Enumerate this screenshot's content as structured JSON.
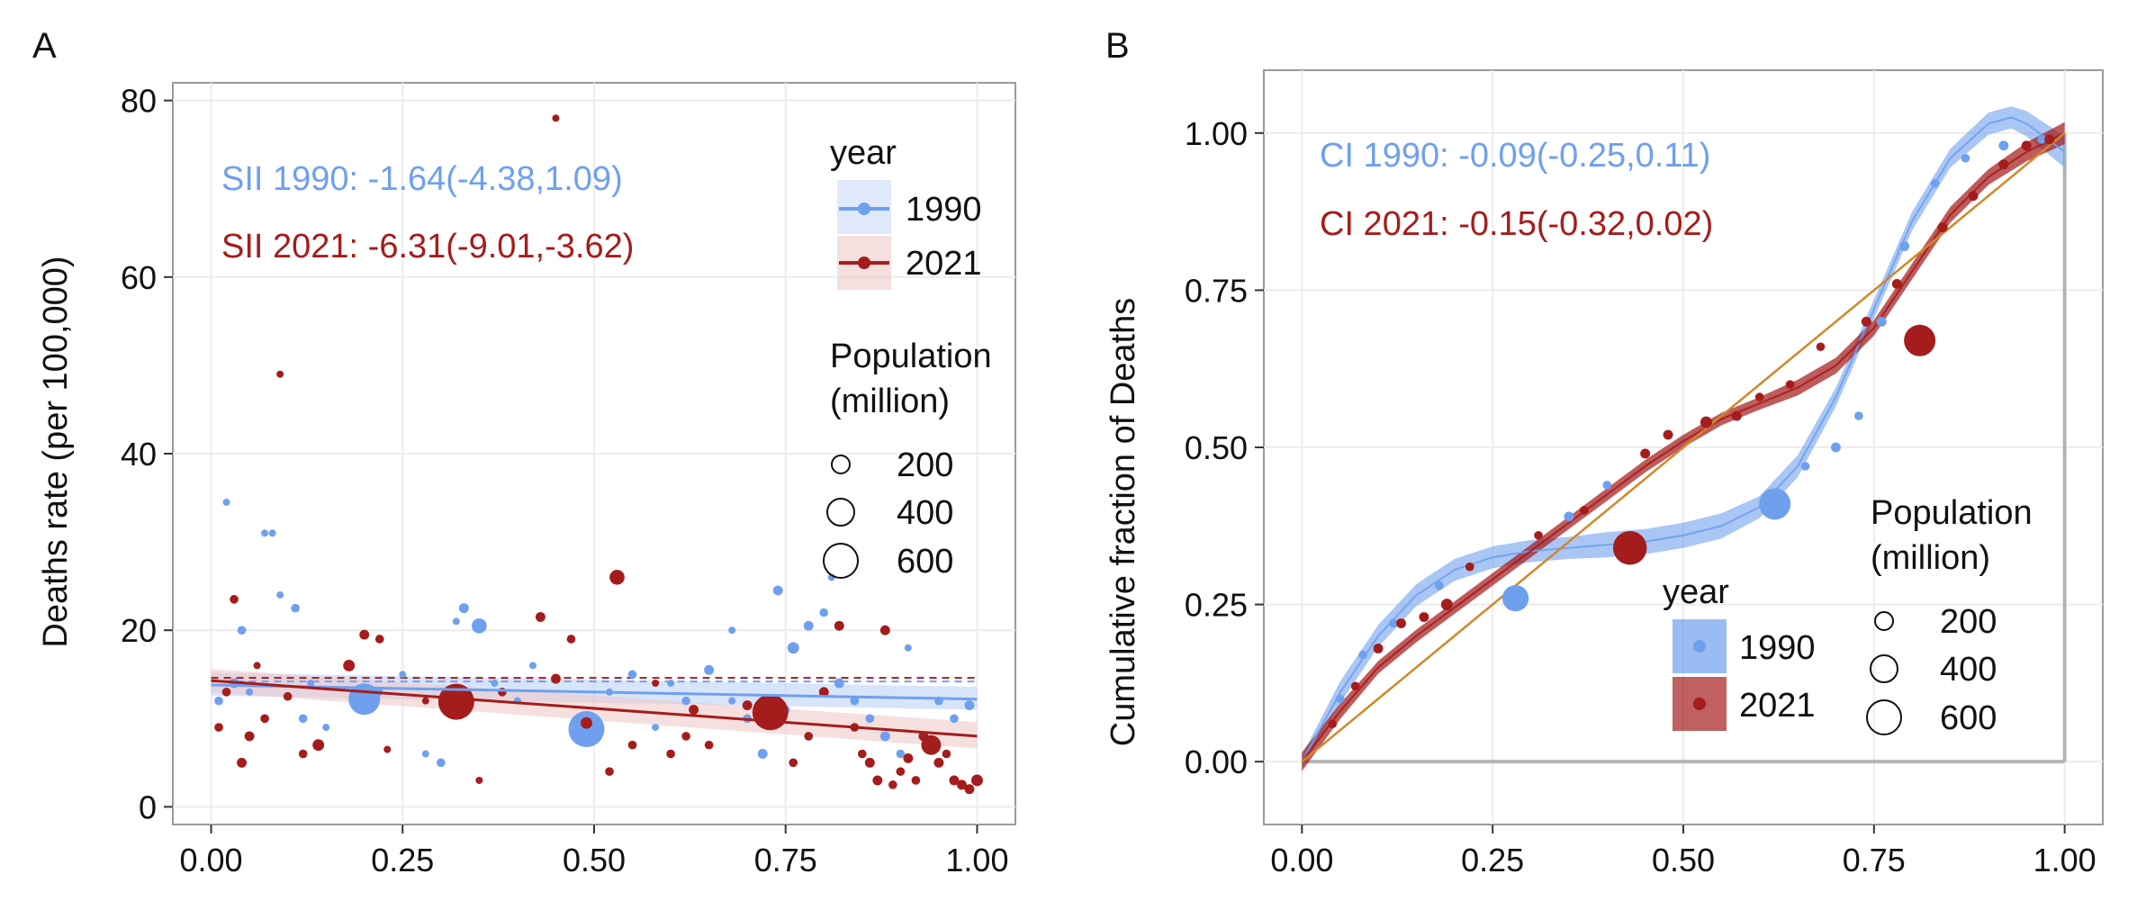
{
  "colors": {
    "c1990": "#6fa0ee",
    "c1990_band": "#a9c4f5",
    "c2021": "#a51c1c",
    "c2021_band": "#efc9c9",
    "diag": "#d4862a",
    "grid": "#ececec",
    "frame": "#9a9a9a",
    "text": "#111111"
  },
  "chart_data": [
    {
      "panel": "A",
      "type": "scatter",
      "ylabel": "Deaths rate (per 100,000)",
      "xlim": [
        -0.05,
        1.05
      ],
      "ylim": [
        -2,
        82
      ],
      "xticks": [
        0,
        0.25,
        0.5,
        0.75,
        1
      ],
      "xtick_labels": [
        "0.00",
        "0.25",
        "0.50",
        "0.75",
        "1.00"
      ],
      "yticks": [
        0,
        20,
        40,
        60,
        80
      ],
      "ytick_labels": [
        "0",
        "20",
        "40",
        "60",
        "80"
      ],
      "annotations": [
        "SII 1990: -1.64(-4.38,1.09)",
        "SII 2021: -6.31(-9.01,-3.62)"
      ],
      "legend_year_title": "year",
      "legend_size_title": [
        "Population",
        "(million)"
      ],
      "series": [
        {
          "name": "1990",
          "fit": [
            [
              0,
              13.8
            ],
            [
              1,
              12.2
            ]
          ],
          "band": [
            [
              0,
              12.6,
              15.2
            ],
            [
              1,
              11.0,
              13.6
            ]
          ],
          "mean": 14.2
        },
        {
          "name": "2021",
          "fit": [
            [
              0,
              14.3
            ],
            [
              1,
              8.0
            ]
          ],
          "band": [
            [
              0,
              13.0,
              15.6
            ],
            [
              1,
              6.6,
              9.6
            ]
          ],
          "mean": 14.6
        }
      ],
      "points_1990": [
        [
          0.01,
          12,
          2
        ],
        [
          0.02,
          34.5,
          1
        ],
        [
          0.03,
          14,
          3
        ],
        [
          0.04,
          20,
          2
        ],
        [
          0.05,
          13,
          1
        ],
        [
          0.07,
          31,
          1
        ],
        [
          0.08,
          31,
          1
        ],
        [
          0.09,
          24,
          1
        ],
        [
          0.11,
          22.5,
          2
        ],
        [
          0.12,
          10,
          2
        ],
        [
          0.13,
          14,
          1
        ],
        [
          0.2,
          12.2,
          60
        ],
        [
          0.22,
          13,
          1
        ],
        [
          0.28,
          6,
          1
        ],
        [
          0.3,
          5,
          2
        ],
        [
          0.32,
          21,
          1
        ],
        [
          0.33,
          22.5,
          3
        ],
        [
          0.35,
          20.5,
          10
        ],
        [
          0.37,
          14,
          1
        ],
        [
          0.4,
          12,
          1
        ],
        [
          0.49,
          8.8,
          90
        ],
        [
          0.52,
          13,
          1
        ],
        [
          0.55,
          15,
          2
        ],
        [
          0.6,
          14,
          1
        ],
        [
          0.62,
          12,
          2
        ],
        [
          0.65,
          15.5,
          3
        ],
        [
          0.68,
          12,
          1
        ],
        [
          0.7,
          10,
          2
        ],
        [
          0.72,
          6,
          3
        ],
        [
          0.74,
          24.5,
          3
        ],
        [
          0.75,
          11,
          2
        ],
        [
          0.76,
          18,
          5
        ],
        [
          0.78,
          20.5,
          3
        ],
        [
          0.8,
          22,
          2
        ],
        [
          0.81,
          26,
          1
        ],
        [
          0.82,
          14,
          3
        ],
        [
          0.84,
          12,
          2
        ],
        [
          0.86,
          10,
          2
        ],
        [
          0.88,
          8,
          3
        ],
        [
          0.9,
          6,
          2
        ],
        [
          0.91,
          18,
          1
        ],
        [
          0.93,
          8,
          2
        ],
        [
          0.95,
          12,
          2
        ],
        [
          0.97,
          10,
          2
        ],
        [
          0.99,
          11.5,
          3
        ],
        [
          0.25,
          15,
          1
        ],
        [
          0.15,
          9,
          1
        ],
        [
          0.42,
          16,
          1
        ],
        [
          0.58,
          9,
          1
        ],
        [
          0.68,
          20,
          1
        ]
      ],
      "points_2021": [
        [
          0.01,
          9,
          2
        ],
        [
          0.02,
          13,
          2
        ],
        [
          0.03,
          23.5,
          2
        ],
        [
          0.04,
          5,
          3
        ],
        [
          0.05,
          8,
          3
        ],
        [
          0.06,
          16,
          1
        ],
        [
          0.09,
          49,
          1
        ],
        [
          0.1,
          12.5,
          2
        ],
        [
          0.12,
          6,
          2
        ],
        [
          0.14,
          7,
          5
        ],
        [
          0.18,
          16,
          5
        ],
        [
          0.2,
          19.5,
          3
        ],
        [
          0.22,
          19,
          2
        ],
        [
          0.23,
          6.5,
          1
        ],
        [
          0.28,
          12,
          1
        ],
        [
          0.32,
          11.9,
          90
        ],
        [
          0.38,
          13,
          2
        ],
        [
          0.45,
          14.5,
          3
        ],
        [
          0.45,
          78,
          1
        ],
        [
          0.47,
          19,
          2
        ],
        [
          0.49,
          9.5,
          5
        ],
        [
          0.52,
          4,
          2
        ],
        [
          0.53,
          26,
          10
        ],
        [
          0.55,
          7,
          2
        ],
        [
          0.58,
          14,
          1
        ],
        [
          0.6,
          6,
          2
        ],
        [
          0.63,
          11,
          3
        ],
        [
          0.65,
          7,
          2
        ],
        [
          0.7,
          11.5,
          3
        ],
        [
          0.73,
          10.7,
          80
        ],
        [
          0.76,
          5,
          2
        ],
        [
          0.78,
          8,
          2
        ],
        [
          0.8,
          13,
          3
        ],
        [
          0.82,
          20.5,
          3
        ],
        [
          0.84,
          9,
          2
        ],
        [
          0.85,
          6,
          2
        ],
        [
          0.86,
          5,
          3
        ],
        [
          0.87,
          3,
          3
        ],
        [
          0.88,
          20,
          3
        ],
        [
          0.89,
          2.5,
          2
        ],
        [
          0.9,
          4,
          2
        ],
        [
          0.91,
          5.5,
          3
        ],
        [
          0.92,
          3,
          2
        ],
        [
          0.93,
          8,
          3
        ],
        [
          0.94,
          7,
          20
        ],
        [
          0.95,
          5,
          3
        ],
        [
          0.96,
          6,
          2
        ],
        [
          0.97,
          3,
          3
        ],
        [
          0.98,
          2.5,
          3
        ],
        [
          0.99,
          2,
          3
        ],
        [
          1.0,
          3,
          5
        ],
        [
          0.43,
          21.5,
          3
        ],
        [
          0.62,
          8,
          2
        ],
        [
          0.35,
          3,
          1
        ],
        [
          0.07,
          10,
          2
        ]
      ]
    },
    {
      "panel": "B",
      "type": "line",
      "ylabel": "Cumulative fraction of Deaths",
      "xlim": [
        -0.05,
        1.05
      ],
      "ylim": [
        -0.1,
        1.1
      ],
      "xticks": [
        0,
        0.25,
        0.5,
        0.75,
        1
      ],
      "xtick_labels": [
        "0.00",
        "0.25",
        "0.50",
        "0.75",
        "1.00"
      ],
      "yticks": [
        0,
        0.25,
        0.5,
        0.75,
        1
      ],
      "ytick_labels": [
        "0.00",
        "0.25",
        "0.50",
        "0.75",
        "1.00"
      ],
      "annotations": [
        "CI 1990: -0.09(-0.25,0.11)",
        "CI 2021: -0.15(-0.32,0.02)"
      ],
      "legend_year_title": "year",
      "legend_size_title": [
        "Population",
        "(million)"
      ],
      "equality_line": [
        [
          0,
          0
        ],
        [
          1,
          1
        ]
      ],
      "series": [
        {
          "name": "1990",
          "curve": [
            [
              0,
              0.0
            ],
            [
              0.05,
              0.11
            ],
            [
              0.1,
              0.2
            ],
            [
              0.15,
              0.265
            ],
            [
              0.2,
              0.305
            ],
            [
              0.25,
              0.325
            ],
            [
              0.3,
              0.335
            ],
            [
              0.35,
              0.34
            ],
            [
              0.4,
              0.345
            ],
            [
              0.45,
              0.35
            ],
            [
              0.5,
              0.36
            ],
            [
              0.55,
              0.375
            ],
            [
              0.6,
              0.405
            ],
            [
              0.65,
              0.47
            ],
            [
              0.7,
              0.58
            ],
            [
              0.75,
              0.72
            ],
            [
              0.8,
              0.86
            ],
            [
              0.85,
              0.96
            ],
            [
              0.9,
              1.015
            ],
            [
              0.93,
              1.025
            ],
            [
              0.95,
              1.015
            ],
            [
              1.0,
              0.97
            ]
          ],
          "band_width": [
            0.02,
            0.035,
            0.035,
            0.035,
            0.035,
            0.035,
            0.035,
            0.035,
            0.04,
            0.04,
            0.04,
            0.04,
            0.035,
            0.035,
            0.03,
            0.03,
            0.03,
            0.03,
            0.035,
            0.035,
            0.04,
            0.05
          ]
        },
        {
          "name": "2021",
          "curve": [
            [
              0,
              0.0
            ],
            [
              0.05,
              0.08
            ],
            [
              0.1,
              0.15
            ],
            [
              0.15,
              0.2
            ],
            [
              0.2,
              0.245
            ],
            [
              0.25,
              0.29
            ],
            [
              0.3,
              0.335
            ],
            [
              0.35,
              0.38
            ],
            [
              0.4,
              0.425
            ],
            [
              0.45,
              0.47
            ],
            [
              0.5,
              0.51
            ],
            [
              0.55,
              0.545
            ],
            [
              0.6,
              0.57
            ],
            [
              0.65,
              0.595
            ],
            [
              0.7,
              0.63
            ],
            [
              0.75,
              0.69
            ],
            [
              0.8,
              0.78
            ],
            [
              0.85,
              0.87
            ],
            [
              0.9,
              0.93
            ],
            [
              0.95,
              0.97
            ],
            [
              1.0,
              1.0
            ]
          ],
          "band_width": [
            0.03,
            0.025,
            0.02,
            0.02,
            0.02,
            0.02,
            0.02,
            0.02,
            0.02,
            0.02,
            0.02,
            0.02,
            0.02,
            0.025,
            0.025,
            0.025,
            0.025,
            0.025,
            0.025,
            0.03,
            0.035
          ]
        }
      ],
      "points_1990": [
        [
          0.28,
          0.26,
          40
        ],
        [
          0.62,
          0.41,
          60
        ],
        [
          0.05,
          0.1,
          2
        ],
        [
          0.08,
          0.17,
          2
        ],
        [
          0.12,
          0.22,
          2
        ],
        [
          0.18,
          0.28,
          2
        ],
        [
          0.35,
          0.39,
          3
        ],
        [
          0.4,
          0.44,
          2
        ],
        [
          0.66,
          0.47,
          2
        ],
        [
          0.7,
          0.5,
          3
        ],
        [
          0.73,
          0.55,
          2
        ],
        [
          0.76,
          0.7,
          3
        ],
        [
          0.79,
          0.82,
          3
        ],
        [
          0.83,
          0.92,
          2
        ],
        [
          0.87,
          0.96,
          2
        ],
        [
          0.92,
          0.98,
          3
        ],
        [
          0.97,
          0.99,
          2
        ]
      ],
      "points_2021": [
        [
          0.43,
          0.34,
          70
        ],
        [
          0.81,
          0.67,
          60
        ],
        [
          0.04,
          0.06,
          2
        ],
        [
          0.07,
          0.12,
          2
        ],
        [
          0.1,
          0.18,
          3
        ],
        [
          0.13,
          0.22,
          3
        ],
        [
          0.16,
          0.23,
          3
        ],
        [
          0.19,
          0.25,
          5
        ],
        [
          0.22,
          0.31,
          2
        ],
        [
          0.31,
          0.36,
          2
        ],
        [
          0.37,
          0.4,
          2
        ],
        [
          0.45,
          0.49,
          3
        ],
        [
          0.48,
          0.52,
          3
        ],
        [
          0.53,
          0.54,
          5
        ],
        [
          0.57,
          0.55,
          3
        ],
        [
          0.6,
          0.58,
          2
        ],
        [
          0.64,
          0.6,
          2
        ],
        [
          0.68,
          0.66,
          2
        ],
        [
          0.74,
          0.7,
          3
        ],
        [
          0.78,
          0.76,
          3
        ],
        [
          0.84,
          0.85,
          3
        ],
        [
          0.88,
          0.9,
          3
        ],
        [
          0.92,
          0.95,
          3
        ],
        [
          0.95,
          0.98,
          3
        ],
        [
          0.98,
          0.99,
          3
        ]
      ]
    }
  ],
  "panel_labels": [
    "A",
    "B"
  ],
  "legend": {
    "year_labels": [
      "1990",
      "2021"
    ],
    "size_labels": [
      "200",
      "400",
      "600"
    ]
  }
}
